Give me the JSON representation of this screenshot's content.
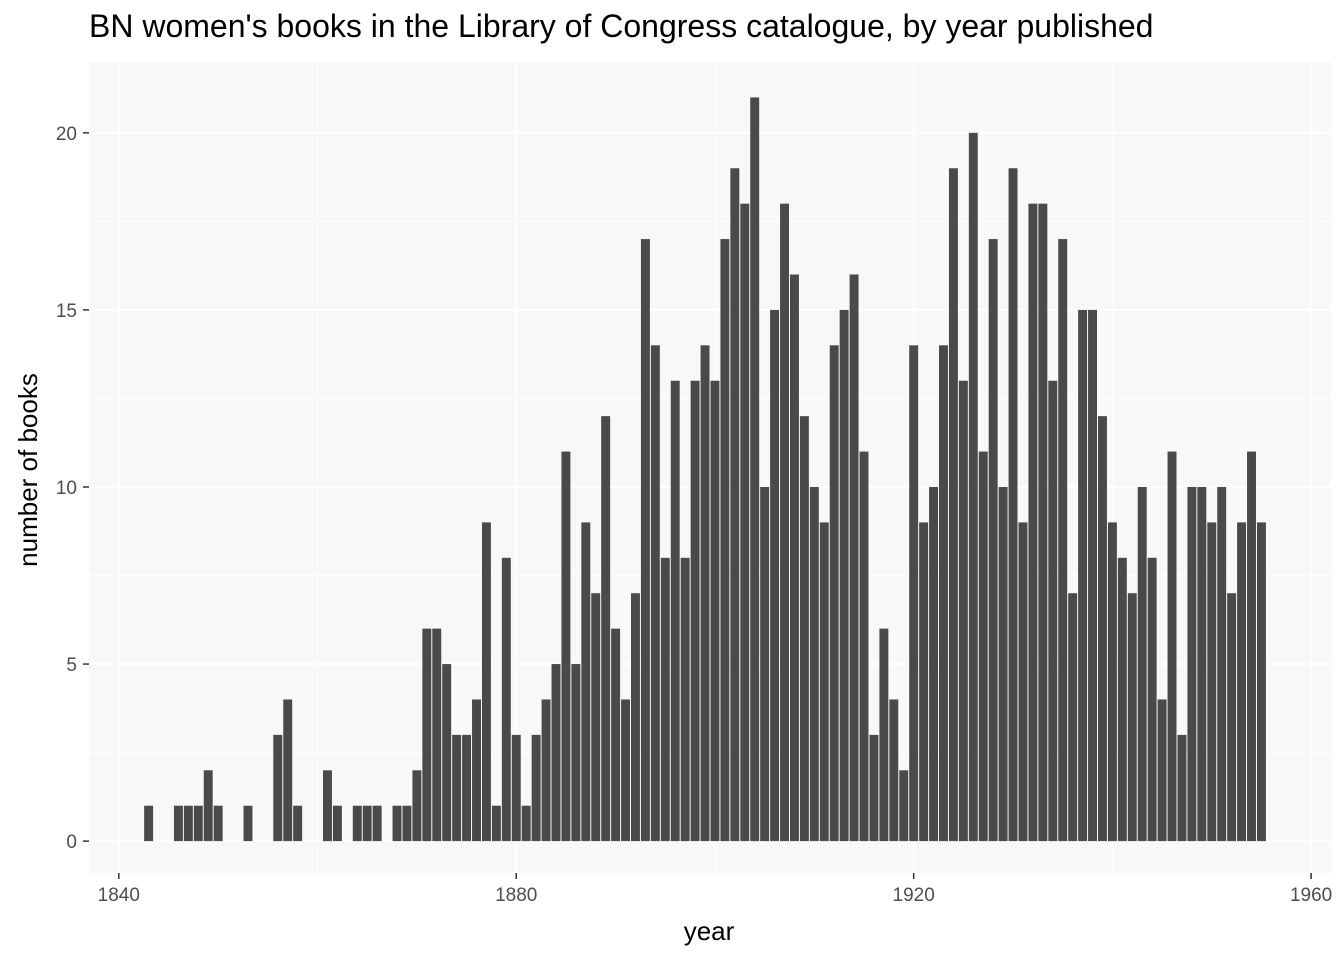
{
  "chart_data": {
    "type": "bar",
    "title": "BN women's books in the Library of Congress catalogue, by year published",
    "xlabel": "year",
    "ylabel": "number of books",
    "xlim": [
      1837,
      1962
    ],
    "ylim": [
      -0.9,
      22
    ],
    "x_ticks": [
      1840,
      1880,
      1920,
      1960
    ],
    "y_ticks": [
      0,
      5,
      10,
      15,
      20
    ],
    "grid": true,
    "bar_color": "#4a4a4a",
    "panel_color": "#f8f8f8",
    "x": [
      1843,
      1846,
      1847,
      1848,
      1849,
      1850,
      1853,
      1856,
      1857,
      1858,
      1861,
      1862,
      1864,
      1865,
      1866,
      1868,
      1869,
      1870,
      1871,
      1872,
      1873,
      1874,
      1875,
      1876,
      1877,
      1878,
      1879,
      1880,
      1881,
      1882,
      1883,
      1884,
      1885,
      1886,
      1887,
      1888,
      1889,
      1890,
      1891,
      1892,
      1893,
      1894,
      1895,
      1896,
      1897,
      1898,
      1899,
      1900,
      1901,
      1902,
      1903,
      1904,
      1905,
      1906,
      1907,
      1908,
      1909,
      1910,
      1911,
      1912,
      1913,
      1914,
      1915,
      1916,
      1917,
      1918,
      1919,
      1920,
      1921,
      1922,
      1923,
      1924,
      1925,
      1926,
      1927,
      1928,
      1929,
      1930,
      1931,
      1932,
      1933,
      1934,
      1935,
      1936,
      1937,
      1938,
      1939,
      1940,
      1941,
      1942,
      1943,
      1944,
      1945,
      1946,
      1947,
      1948,
      1949,
      1950,
      1951,
      1952,
      1953,
      1954,
      1955
    ],
    "values": [
      1,
      1,
      1,
      1,
      2,
      1,
      1,
      3,
      4,
      1,
      2,
      1,
      1,
      1,
      1,
      1,
      1,
      2,
      6,
      6,
      5,
      3,
      3,
      4,
      9,
      1,
      8,
      3,
      1,
      3,
      4,
      5,
      11,
      5,
      9,
      7,
      12,
      6,
      4,
      7,
      17,
      14,
      8,
      13,
      8,
      13,
      14,
      13,
      17,
      19,
      18,
      21,
      10,
      15,
      18,
      16,
      12,
      10,
      9,
      14,
      15,
      16,
      11,
      3,
      6,
      4,
      2,
      14,
      9,
      10,
      14,
      19,
      13,
      20,
      11,
      17,
      10,
      19,
      9,
      18,
      18,
      13,
      17,
      7,
      15,
      15,
      12,
      9,
      8,
      7,
      10,
      8,
      4,
      11,
      3,
      10,
      10,
      9,
      10,
      7,
      9,
      11,
      9
    ]
  }
}
